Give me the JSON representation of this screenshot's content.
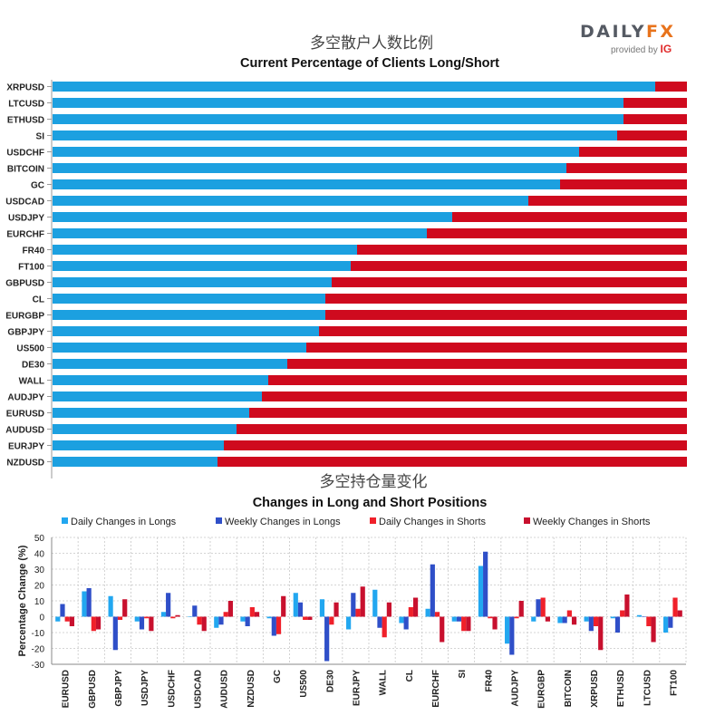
{
  "logo": {
    "brand_a": "DAILY",
    "brand_b": "FX",
    "provided_by": "provided by",
    "ig": "IG"
  },
  "colors": {
    "long": "#1ca0e0",
    "short": "#cf0a1e",
    "daily_long": "#22a7f0",
    "weekly_long": "#2f4fc8",
    "daily_short": "#f0202a",
    "weekly_short": "#c8102e"
  },
  "chart_data": [
    {
      "type": "bar",
      "orientation": "horizontal",
      "stacked": true,
      "title_cn": "多空散户人数比例",
      "title": "Current Percentage of Clients Long/Short",
      "categories": [
        "XRPUSD",
        "LTCUSD",
        "ETHUSD",
        "SI",
        "USDCHF",
        "BITCOIN",
        "GC",
        "USDCAD",
        "USDJPY",
        "EURCHF",
        "FR40",
        "FT100",
        "GBPUSD",
        "CL",
        "EURGBP",
        "GBPJPY",
        "US500",
        "DE30",
        "WALL",
        "AUDJPY",
        "EURUSD",
        "AUDUSD",
        "EURJPY",
        "NZDUSD"
      ],
      "series": [
        {
          "key": "long",
          "values": [
            95,
            90,
            90,
            89,
            83,
            81,
            80,
            75,
            63,
            59,
            48,
            47,
            44,
            43,
            43,
            42,
            40,
            37,
            34,
            33,
            31,
            29,
            27,
            26
          ]
        },
        {
          "key": "short",
          "values": [
            5,
            10,
            10,
            11,
            17,
            19,
            20,
            25,
            37,
            41,
            52,
            53,
            56,
            57,
            57,
            58,
            60,
            63,
            66,
            67,
            69,
            71,
            73,
            74
          ]
        }
      ],
      "xlim": [
        0,
        100
      ]
    },
    {
      "type": "bar",
      "orientation": "vertical",
      "title_cn": "多空持仓量变化",
      "title": "Changes in Long and Short Positions",
      "ylabel": "Percentage Change (%)",
      "ylim": [
        -30,
        50
      ],
      "yticks": [
        50,
        40,
        30,
        20,
        10,
        0,
        -10,
        -20,
        -30
      ],
      "grid": true,
      "legend_position": "top",
      "categories": [
        "EURUSD",
        "GBPUSD",
        "GBPJPY",
        "USDJPY",
        "USDCHF",
        "USDCAD",
        "AUDUSD",
        "NZDUSD",
        "GC",
        "US500",
        "DE30",
        "EURJPY",
        "WALL",
        "CL",
        "EURCHF",
        "SI",
        "FR40",
        "AUDJPY",
        "EURGBP",
        "BITCOIN",
        "XRPUSD",
        "ETHUSD",
        "LTCUSD",
        "FT100"
      ],
      "series": [
        {
          "name": "Daily Changes in Longs",
          "color_key": "daily_long",
          "values": [
            -3,
            16,
            13,
            -3,
            3,
            0,
            -7,
            -3,
            -1,
            15,
            11,
            -8,
            17,
            -4,
            5,
            -3,
            32,
            -17,
            -3,
            -4,
            -3,
            -1,
            1,
            -10
          ]
        },
        {
          "name": "Weekly Changes in Longs",
          "color_key": "weekly_long",
          "values": [
            8,
            18,
            -21,
            -8,
            15,
            7,
            -5,
            -6,
            -12,
            9,
            -28,
            15,
            -7,
            -8,
            33,
            -3,
            41,
            -24,
            11,
            -4,
            -9,
            -10,
            0,
            -7
          ]
        },
        {
          "name": "Daily Changes in Shorts",
          "color_key": "daily_short",
          "values": [
            -3,
            -9,
            -2,
            -1,
            -1,
            -5,
            3,
            6,
            -11,
            -2,
            -5,
            5,
            -13,
            6,
            3,
            -9,
            -1,
            -1,
            12,
            4,
            -6,
            4,
            -6,
            12
          ]
        },
        {
          "name": "Weekly Changes in Shorts",
          "color_key": "weekly_short",
          "values": [
            -6,
            -8,
            11,
            -9,
            1,
            -9,
            10,
            3,
            13,
            -2,
            9,
            19,
            9,
            12,
            -16,
            -9,
            -8,
            10,
            -3,
            -5,
            -21,
            14,
            -16,
            4
          ]
        }
      ]
    }
  ]
}
